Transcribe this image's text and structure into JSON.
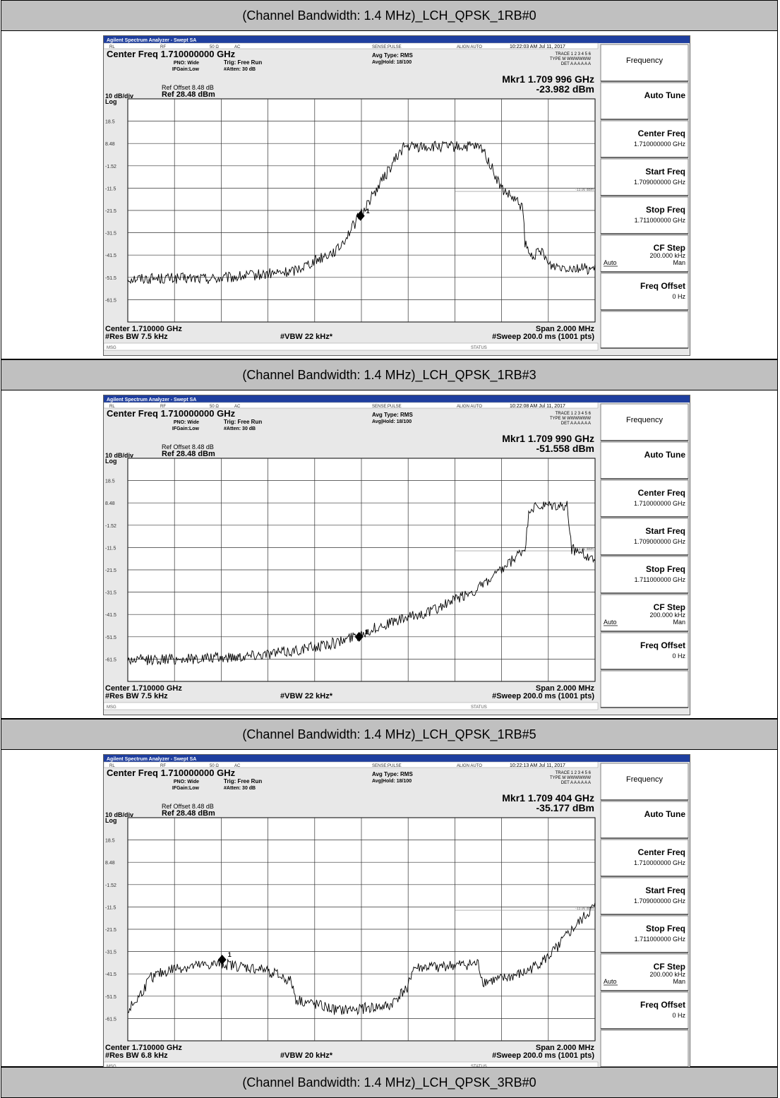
{
  "panels": [
    {
      "heading": "(Channel Bandwidth: 1.4 MHz)_LCH_QPSK_1RB#0",
      "window_title": "Agilent Spectrum Analyzer - Swept SA",
      "status_items": [
        "RL",
        "RF",
        "50 Ω",
        "AC",
        "SENSE:PULSE",
        "ALIGN AUTO"
      ],
      "timestamp": "10:22:03 AM Jul 11, 2017",
      "center_freq_label": "Center Freq 1.710000000 GHz",
      "pno": "PNO: Wide",
      "ifgain": "IFGain:Low",
      "trig": "Trig: Free Run",
      "atten": "#Atten: 30 dB",
      "avg_type": "Avg Type: RMS",
      "avg_hold": "Avg|Hold: 18/100",
      "trace_line": "TRACE 1 2 3 4 5 6",
      "type_line": "TYPE M WWWWWW",
      "det_line": "DET A A A A A A",
      "marker_readout": "Mkr1 1.709 996 GHz",
      "marker_level": "-23.982 dBm",
      "ref_offset": "Ref Offset 8.48 dB",
      "ref_level": "Ref 28.48 dBm",
      "scale": "10 dB/div",
      "scale_type": "Log",
      "center_label": "Center 1.710000 GHz",
      "res_bw": "#Res BW 7.5 kHz",
      "vbw": "#VBW 22 kHz*",
      "span": "Span 2.000 MHz",
      "sweep": "#Sweep  200.0 ms (1001 pts)",
      "msg": "MSG",
      "status": "STATUS",
      "limit_label": "-13.00 dBm",
      "softkeys": {
        "title": "Frequency",
        "auto_tune": "Auto Tune",
        "center_freq": "Center Freq",
        "center_freq_val": "1.710000000 GHz",
        "start_freq": "Start Freq",
        "start_freq_val": "1.709000000 GHz",
        "stop_freq": "Stop Freq",
        "stop_freq_val": "1.711000000 GHz",
        "cf_step": "CF Step",
        "cf_step_val": "200.000 kHz",
        "cf_auto": "Auto",
        "cf_man": "Man",
        "freq_offset": "Freq Offset",
        "freq_offset_val": "0 Hz"
      },
      "chart_data": {
        "type": "line",
        "xlim": [
          1.709,
          1.711
        ],
        "ylim": [
          -71.52,
          28.48
        ],
        "y_ticks": [
          "18.5",
          "8.48",
          "-1.52",
          "-11.5",
          "-21.5",
          "-31.5",
          "-41.5",
          "-51.5",
          "-61.5"
        ],
        "limit_line": -13.0,
        "marker": {
          "label": "1",
          "x": 1.709996,
          "y": -23.982
        },
        "series": [
          {
            "x": [
              1.709,
              1.7094,
              1.7097,
              1.7099,
              1.70998,
              1.71018,
              1.71023,
              1.71048,
              1.71052,
              1.7106,
              1.71069,
              1.7107,
              1.71072,
              1.71078,
              1.7108,
              1.711
            ],
            "y": [
              -52,
              -52,
              -49,
              -39,
              -26,
              7,
              7,
              7,
              6,
              -12,
              -20,
              -36,
              -42,
              -40,
              -46,
              -48
            ]
          }
        ]
      }
    },
    {
      "heading": "(Channel Bandwidth: 1.4 MHz)_LCH_QPSK_1RB#3",
      "window_title": "Agilent Spectrum Analyzer - Swept SA",
      "status_items": [
        "RL",
        "RF",
        "50 Ω",
        "AC",
        "SENSE:PULSE",
        "ALIGN AUTO"
      ],
      "timestamp": "10:22:08 AM Jul 11, 2017",
      "center_freq_label": "Center Freq 1.710000000 GHz",
      "pno": "PNO: Wide",
      "ifgain": "IFGain:Low",
      "trig": "Trig: Free Run",
      "atten": "#Atten: 30 dB",
      "avg_type": "Avg Type: RMS",
      "avg_hold": "Avg|Hold: 18/100",
      "trace_line": "TRACE 1 2 3 4 5 6",
      "type_line": "TYPE M WWWWWW",
      "det_line": "DET A A A A A A",
      "marker_readout": "Mkr1 1.709 990 GHz",
      "marker_level": "-51.558 dBm",
      "ref_offset": "Ref Offset 8.48 dB",
      "ref_level": "Ref 28.48 dBm",
      "scale": "10 dB/div",
      "scale_type": "Log",
      "center_label": "Center 1.710000 GHz",
      "res_bw": "#Res BW 7.5 kHz",
      "vbw": "#VBW 22 kHz*",
      "span": "Span 2.000 MHz",
      "sweep": "#Sweep  200.0 ms (1001 pts)",
      "msg": "MSG",
      "status": "STATUS",
      "limit_label": "-13.00 dBm",
      "softkeys": {
        "title": "Frequency",
        "auto_tune": "Auto Tune",
        "center_freq": "Center Freq",
        "center_freq_val": "1.710000000 GHz",
        "start_freq": "Start Freq",
        "start_freq_val": "1.709000000 GHz",
        "stop_freq": "Stop Freq",
        "stop_freq_val": "1.711000000 GHz",
        "cf_step": "CF Step",
        "cf_step_val": "200.000 kHz",
        "cf_auto": "Auto",
        "cf_man": "Man",
        "freq_offset": "Freq Offset",
        "freq_offset_val": "0 Hz"
      },
      "chart_data": {
        "type": "line",
        "xlim": [
          1.709,
          1.711
        ],
        "ylim": [
          -71.52,
          28.48
        ],
        "y_ticks": [
          "18.5",
          "8.48",
          "-1.52",
          "-11.5",
          "-21.5",
          "-31.5",
          "-41.5",
          "-51.5",
          "-61.5"
        ],
        "limit_line": -13.0,
        "marker": {
          "label": "1",
          "x": 1.70999,
          "y": -51.558
        },
        "series": [
          {
            "x": [
              1.709,
              1.7094,
              1.7097,
              1.7099,
              1.7101,
              1.7103,
              1.7105,
              1.7106,
              1.7107,
              1.71072,
              1.7108,
              1.71088,
              1.7109,
              1.711
            ],
            "y": [
              -62,
              -61,
              -58,
              -54,
              -46,
              -40,
              -30,
              -22,
              -12,
              6,
              7,
              7,
              -12,
              -17
            ]
          }
        ]
      }
    },
    {
      "heading": "(Channel Bandwidth: 1.4 MHz)_LCH_QPSK_1RB#5",
      "window_title": "Agilent Spectrum Analyzer - Swept SA",
      "status_items": [
        "RL",
        "RF",
        "50 Ω",
        "AC",
        "SENSE:PULSE",
        "ALIGN AUTO"
      ],
      "timestamp": "10:22:13 AM Jul 11, 2017",
      "center_freq_label": "Center Freq 1.710000000 GHz",
      "pno": "PNO: Wide",
      "ifgain": "IFGain:Low",
      "trig": "Trig: Free Run",
      "atten": "#Atten: 30 dB",
      "avg_type": "Avg Type: RMS",
      "avg_hold": "Avg|Hold: 18/100",
      "trace_line": "TRACE 1 2 3 4 5 6",
      "type_line": "TYPE M WWWWWW",
      "det_line": "DET A A A A A A",
      "marker_readout": "Mkr1 1.709 404 GHz",
      "marker_level": "-35.177 dBm",
      "ref_offset": "Ref Offset 8.48 dB",
      "ref_level": "Ref 28.48 dBm",
      "scale": "10 dB/div",
      "scale_type": "Log",
      "center_label": "Center 1.710000 GHz",
      "res_bw": "#Res BW 6.8 kHz",
      "vbw": "#VBW 20 kHz*",
      "span": "Span 2.000 MHz",
      "sweep": "#Sweep  200.0 ms (1001 pts)",
      "msg": "MSG",
      "status": "STATUS",
      "limit_label": "-13.00 dBm",
      "softkeys": {
        "title": "Frequency",
        "auto_tune": "Auto Tune",
        "center_freq": "Center Freq",
        "center_freq_val": "1.710000000 GHz",
        "start_freq": "Start Freq",
        "start_freq_val": "1.709000000 GHz",
        "stop_freq": "Stop Freq",
        "stop_freq_val": "1.711000000 GHz",
        "cf_step": "CF Step",
        "cf_step_val": "200.000 kHz",
        "cf_auto": "Auto",
        "cf_man": "Man",
        "freq_offset": "Freq Offset",
        "freq_offset_val": "0 Hz"
      },
      "chart_data": {
        "type": "line",
        "xlim": [
          1.709,
          1.711
        ],
        "ylim": [
          -71.52,
          28.48
        ],
        "y_ticks": [
          "18.5",
          "8.48",
          "-1.52",
          "-11.5",
          "-21.5",
          "-31.5",
          "-41.5",
          "-51.5",
          "-61.5"
        ],
        "limit_line": -13.0,
        "marker": {
          "label": "1",
          "x": 1.709404,
          "y": -35.177
        },
        "series": [
          {
            "x": [
              1.709,
              1.70904,
              1.7091,
              1.7092,
              1.7094,
              1.7096,
              1.7097,
              1.70972,
              1.7099,
              1.71012,
              1.7102,
              1.71022,
              1.7105,
              1.71052,
              1.7106,
              1.7107,
              1.7108,
              1.7109,
              1.711
            ],
            "y": [
              -58,
              -53,
              -43,
              -39,
              -37,
              -40,
              -45,
              -53,
              -58,
              -56,
              -47,
              -39,
              -37,
              -45,
              -44,
              -41,
              -34,
              -22,
              -11
            ]
          }
        ]
      }
    }
  ],
  "last_heading": "(Channel Bandwidth: 1.4 MHz)_LCH_QPSK_3RB#0"
}
